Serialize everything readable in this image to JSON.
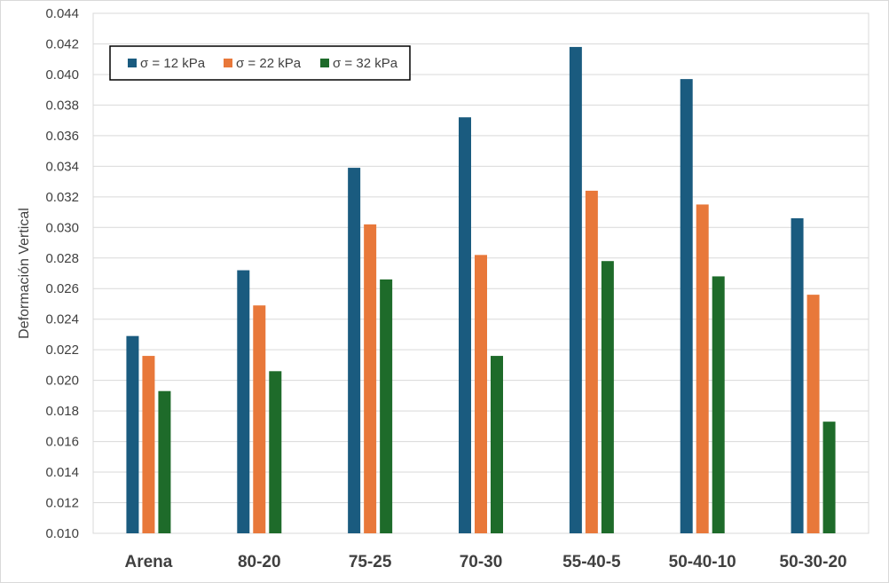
{
  "chart_data": {
    "type": "bar",
    "title": "",
    "xlabel": "",
    "ylabel": "Deformación Vertical",
    "ylim": [
      0.01,
      0.044
    ],
    "y_ticks": [
      "0.010",
      "0.012",
      "0.014",
      "0.016",
      "0.018",
      "0.020",
      "0.022",
      "0.024",
      "0.026",
      "0.028",
      "0.030",
      "0.032",
      "0.034",
      "0.036",
      "0.038",
      "0.040",
      "0.042",
      "0.044"
    ],
    "grid": true,
    "legend_position": "top-left",
    "categories": [
      "Arena",
      "80-20",
      "75-25",
      "70-30",
      "55-40-5",
      "50-40-10",
      "50-30-20"
    ],
    "series": [
      {
        "name": "σ = 12 kPa",
        "color": "#1a5b7f",
        "values": [
          0.0229,
          0.0272,
          0.0339,
          0.0372,
          0.0418,
          0.0397,
          0.0306
        ]
      },
      {
        "name": "σ = 22 kPa",
        "color": "#e8783a",
        "values": [
          0.0216,
          0.0249,
          0.0302,
          0.0282,
          0.0324,
          0.0315,
          0.0256
        ]
      },
      {
        "name": "σ = 32 kPa",
        "color": "#1e6b2a",
        "values": [
          0.0193,
          0.0206,
          0.0266,
          0.0216,
          0.0278,
          0.0268,
          0.0173
        ]
      }
    ]
  }
}
